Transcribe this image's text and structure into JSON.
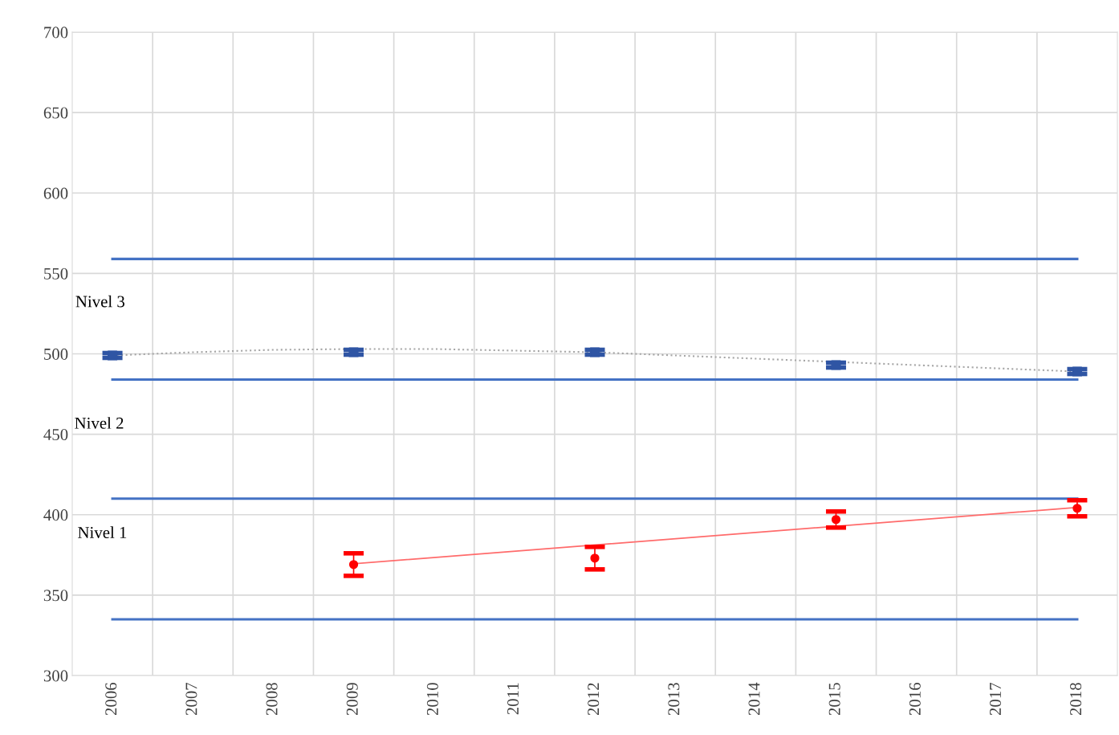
{
  "chart_data": {
    "type": "line",
    "xlim": [
      2005.5,
      2018.5
    ],
    "xticks": [
      2006,
      2007,
      2008,
      2009,
      2010,
      2011,
      2012,
      2013,
      2014,
      2015,
      2016,
      2017,
      2018
    ],
    "ylim": [
      300,
      700
    ],
    "yticks": [
      300,
      350,
      400,
      450,
      500,
      550,
      600,
      650,
      700
    ],
    "grid": true,
    "series": [
      {
        "color": "#4472c4",
        "x": [
          2006,
          2018
        ],
        "values": [
          559,
          559
        ],
        "line_style": "solid"
      },
      {
        "color": "#4472c4",
        "x": [
          2006,
          2018
        ],
        "values": [
          484,
          484
        ],
        "line_style": "solid"
      },
      {
        "color": "#4472c4",
        "x": [
          2006,
          2018
        ],
        "values": [
          410,
          410
        ],
        "line_style": "solid"
      },
      {
        "color": "#4472c4",
        "x": [
          2006,
          2018
        ],
        "values": [
          335,
          335
        ],
        "line_style": "solid"
      },
      {
        "color": "#a6a6a6",
        "x": [
          2006,
          2007,
          2008,
          2009,
          2010,
          2011,
          2012,
          2013,
          2014,
          2015,
          2016,
          2017,
          2018
        ],
        "values": [
          499,
          501,
          502.5,
          503,
          503,
          502,
          501,
          499,
          497,
          495,
          493,
          491,
          489
        ],
        "line_style": "dotted"
      },
      {
        "type": "scatter",
        "color": "#2f55a4",
        "x": [
          2006,
          2009,
          2012,
          2015,
          2018
        ],
        "values": [
          499,
          501,
          501,
          493,
          489
        ],
        "errors": [
          1.5,
          1.5,
          1.5,
          1.5,
          1.5
        ],
        "marker": "square"
      },
      {
        "color": "#ff6b6b",
        "x": [
          2009,
          2018
        ],
        "values": [
          369.5,
          404.5
        ],
        "line_style": "solid"
      },
      {
        "type": "scatter",
        "color": "#ff0000",
        "x": [
          2009,
          2012,
          2015,
          2018
        ],
        "values": [
          369,
          373,
          397,
          404
        ],
        "errors": [
          7,
          7,
          5,
          5
        ],
        "marker": "circle"
      }
    ],
    "annotations": [
      "Nivel 3",
      "Nivel 2",
      "Nivel 1"
    ]
  }
}
